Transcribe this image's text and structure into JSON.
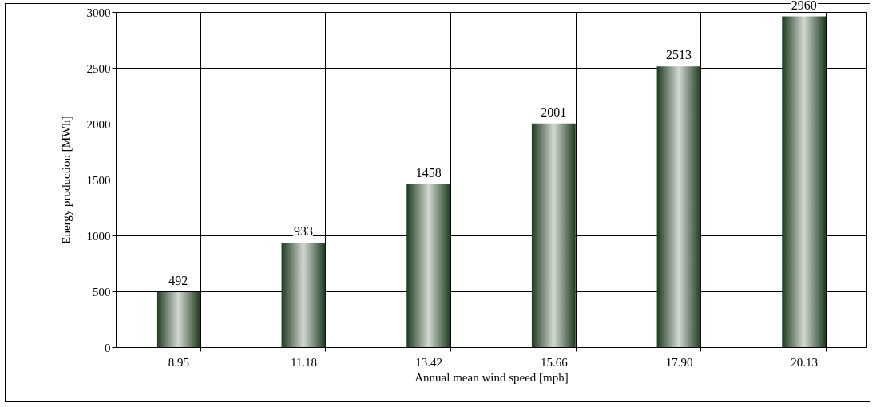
{
  "chart_data": {
    "type": "bar",
    "xlabel": "Annual mean wind speed [mph]",
    "ylabel": "Energy production [MWh]",
    "categories": [
      "8.95",
      "11.18",
      "13.42",
      "15.66",
      "17.90",
      "20.13"
    ],
    "values": [
      492,
      933,
      1458,
      2001,
      2513,
      2960
    ],
    "color": "#1e3a1e",
    "ylim": [
      0,
      3000
    ],
    "yticks": [
      0,
      500,
      1000,
      1500,
      2000,
      2500,
      3000
    ],
    "grid": true,
    "data_labels": true
  }
}
